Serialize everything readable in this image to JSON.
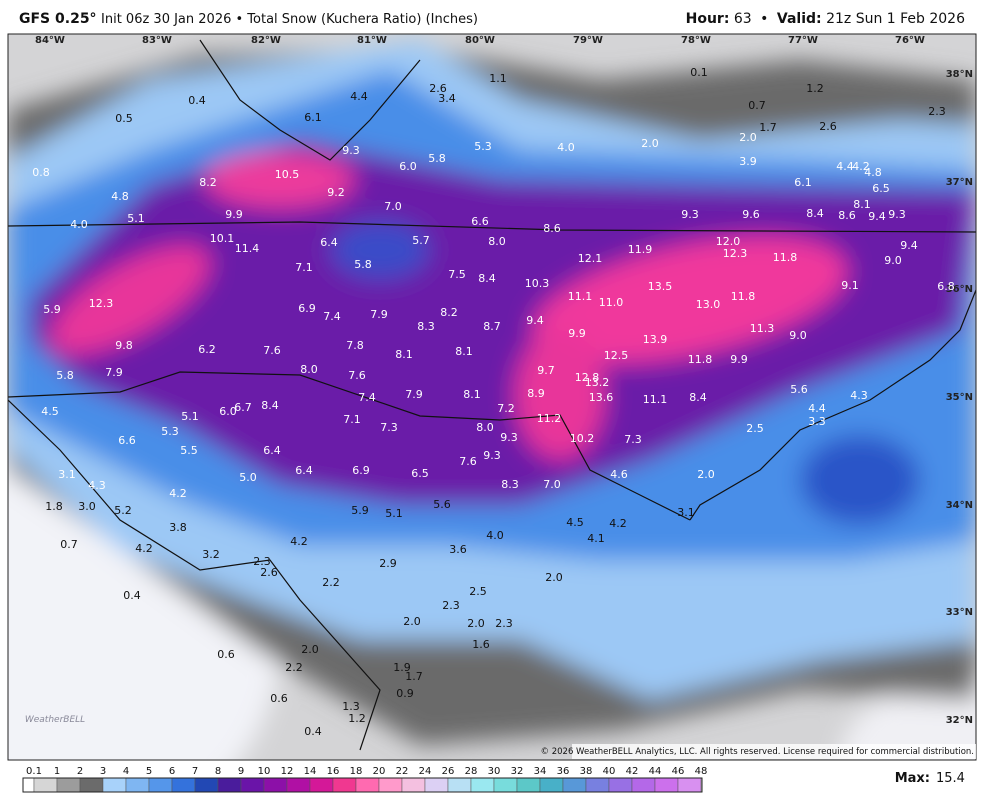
{
  "header": {
    "model": "GFS 0.25°",
    "subtitle": "Init 06z 30 Jan 2026 • Total Snow (Kuchera Ratio) (Inches)",
    "hour_label": "Hour:",
    "hour": "63",
    "separator": "•",
    "valid_label": "Valid:",
    "valid": "21z Sun 1 Feb 2026"
  },
  "map": {
    "longitudes": [
      "84°W",
      "83°W",
      "82°W",
      "81°W",
      "80°W",
      "79°W",
      "78°W",
      "77°W",
      "76°W"
    ],
    "latitudes": [
      "38°N",
      "37°N",
      "36°N",
      "35°N",
      "34°N",
      "33°N",
      "32°N"
    ],
    "snow_labels": [
      "0.4",
      "0.5",
      "0.8",
      "4.4",
      "2.6",
      "3.4",
      "1.1",
      "0.1",
      "0.7",
      "1.2",
      "2.3",
      "6.1",
      "1.7",
      "2.0",
      "2.6",
      "2.0",
      "4.0",
      "5.3",
      "9.3",
      "6.0",
      "5.8",
      "3.9",
      "4.4",
      "4.2",
      "4.8",
      "6.1",
      "6.5",
      "10.5",
      "8.2",
      "9.2",
      "4.8",
      "5.1",
      "4.0",
      "7.0",
      "9.9",
      "6.6",
      "8.6",
      "9.3",
      "9.6",
      "8.4",
      "8.6",
      "9.4",
      "9.3",
      "8.1",
      "10.1",
      "11.4",
      "6.4",
      "5.7",
      "8.0",
      "12.0",
      "12.3",
      "9.4",
      "11.9",
      "12.1",
      "11.8",
      "9.0",
      "5.8",
      "7.1",
      "7.5",
      "8.4",
      "10.3",
      "13.5",
      "9.1",
      "6.8",
      "11.1",
      "11.0",
      "13.0",
      "11.8",
      "12.3",
      "5.9",
      "6.9",
      "7.4",
      "7.9",
      "8.2",
      "8.3",
      "8.7",
      "9.4",
      "9.9",
      "13.9",
      "11.3",
      "9.0",
      "9.8",
      "6.2",
      "7.6",
      "7.8",
      "8.1",
      "8.1",
      "12.5",
      "11.8",
      "9.9",
      "5.8",
      "7.9",
      "8.0",
      "7.6",
      "9.7",
      "12.8",
      "13.2",
      "13.6",
      "5.6",
      "4.3",
      "4.5",
      "6.7",
      "6.0",
      "8.4",
      "7.4",
      "7.9",
      "8.1",
      "8.9",
      "11.1",
      "8.4",
      "4.4",
      "3.3",
      "7.2",
      "5.1",
      "7.1",
      "7.3",
      "8.0",
      "11.2",
      "5.3",
      "6.6",
      "9.3",
      "10.2",
      "7.3",
      "2.5",
      "5.5",
      "6.4",
      "9.3",
      "7.6",
      "3.1",
      "6.4",
      "6.9",
      "6.5",
      "4.6",
      "2.0",
      "5.0",
      "4.3",
      "8.3",
      "7.0",
      "4.2",
      "1.8",
      "3.0",
      "5.2",
      "5.9",
      "5.1",
      "5.6",
      "3.1",
      "4.5",
      "4.2",
      "3.8",
      "4.0",
      "4.1",
      "0.7",
      "4.2",
      "3.2",
      "4.2",
      "3.6",
      "2.3",
      "2.6",
      "2.9",
      "2.0",
      "2.2",
      "2.5",
      "0.4",
      "2.3",
      "2.0",
      "2.0",
      "2.3",
      "1.6",
      "2.0",
      "0.6",
      "2.2",
      "1.9",
      "1.7",
      "0.9",
      "0.6",
      "1.3",
      "1.2",
      "0.4"
    ],
    "logo": "WeatherBELL",
    "copyright": "© 2026 WeatherBELL Analytics, LLC. All rights reserved. License required for commercial distribution."
  },
  "colorbar": {
    "levels": [
      "0.1",
      "1",
      "2",
      "3",
      "4",
      "5",
      "6",
      "7",
      "8",
      "9",
      "10",
      "12",
      "14",
      "16",
      "18",
      "20",
      "22",
      "24",
      "26",
      "28",
      "30",
      "32",
      "34",
      "36",
      "38",
      "40",
      "42",
      "44",
      "46",
      "48"
    ],
    "colors": [
      "#ffffff",
      "#d6d6d6",
      "#9c9c9c",
      "#6b6b6b",
      "#a8d2fa",
      "#7fb6f2",
      "#5596ea",
      "#3472dc",
      "#2248b4",
      "#4a1c9c",
      "#6a14a8",
      "#8c10a8",
      "#b010a4",
      "#d41898",
      "#f03890",
      "#ff6ab0",
      "#ff9acb",
      "#f4c0e0",
      "#dcd0f4",
      "#b8e0f4",
      "#9ae8f0",
      "#78dcdc",
      "#5cc8c8",
      "#48b0c8",
      "#5898d8",
      "#7880e0",
      "#9870e4",
      "#b468e8",
      "#cc70ec",
      "#d890f0"
    ]
  },
  "max": {
    "label": "Max:",
    "value": "15.4"
  }
}
